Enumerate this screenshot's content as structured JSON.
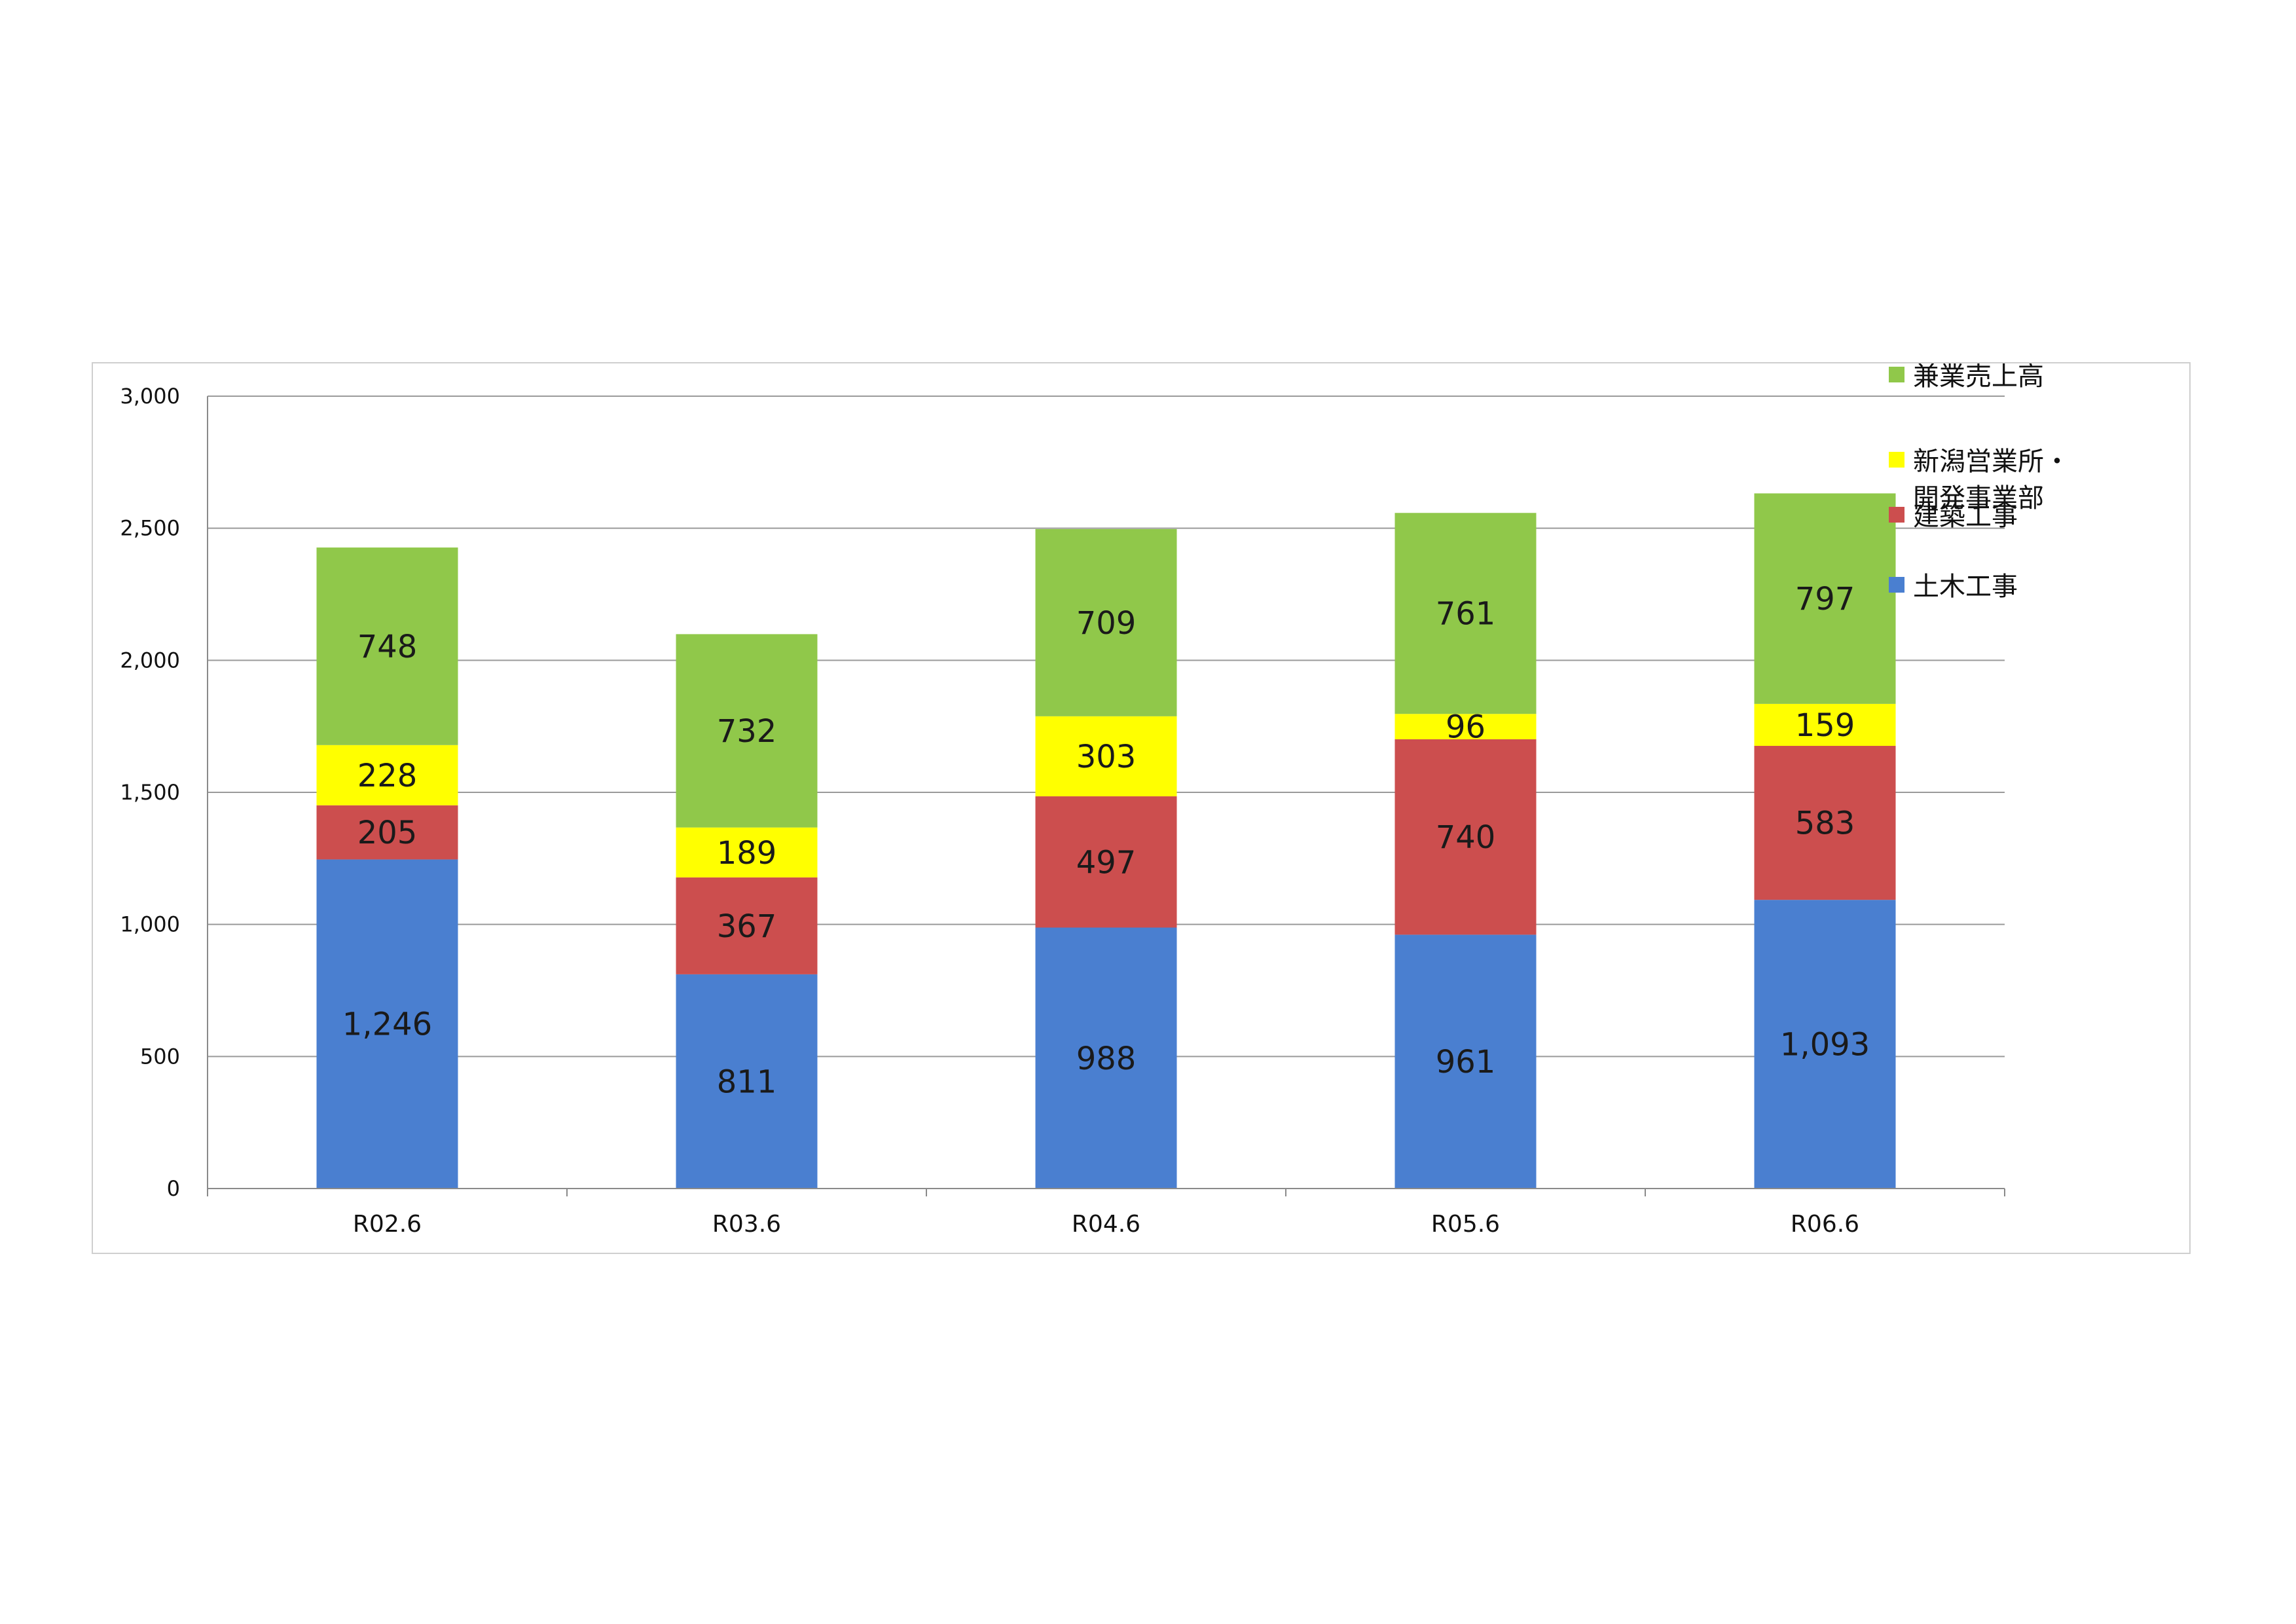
{
  "chart_data": {
    "type": "bar",
    "stacked": true,
    "categories": [
      "R02.6",
      "R03.6",
      "R04.6",
      "R05.6",
      "R06.6"
    ],
    "series": [
      {
        "name": "土木工事",
        "color": "#4a7fd0",
        "values": [
          1246,
          811,
          988,
          961,
          1093
        ],
        "labels": [
          "1,246",
          "811",
          "988",
          "961",
          "1,093"
        ]
      },
      {
        "name": "建築工事",
        "color": "#cc4e4e",
        "values": [
          205,
          367,
          497,
          740,
          583
        ],
        "labels": [
          "205",
          "367",
          "497",
          "740",
          "583"
        ]
      },
      {
        "name": "新潟営業所・開発事業部",
        "name_lines": [
          "新潟営業所・",
          "開発事業部"
        ],
        "color": "#ffff00",
        "values": [
          228,
          189,
          303,
          96,
          159
        ],
        "labels": [
          "228",
          "189",
          "303",
          "96",
          "159"
        ]
      },
      {
        "name": "兼業売上高",
        "color": "#90c84a",
        "values": [
          748,
          732,
          709,
          761,
          797
        ],
        "labels": [
          "748",
          "732",
          "709",
          "761",
          "797"
        ]
      }
    ],
    "ylim": [
      0,
      3000
    ],
    "yticks": [
      0,
      500,
      1000,
      1500,
      2000,
      2500,
      3000
    ],
    "ytick_labels": [
      "0",
      "500",
      "1,000",
      "1,500",
      "2,000",
      "2,500",
      "3,000"
    ],
    "grid": true,
    "legend_position": "right",
    "legend_order": [
      3,
      2,
      1,
      0
    ],
    "title": "",
    "xlabel": "",
    "ylabel": ""
  }
}
